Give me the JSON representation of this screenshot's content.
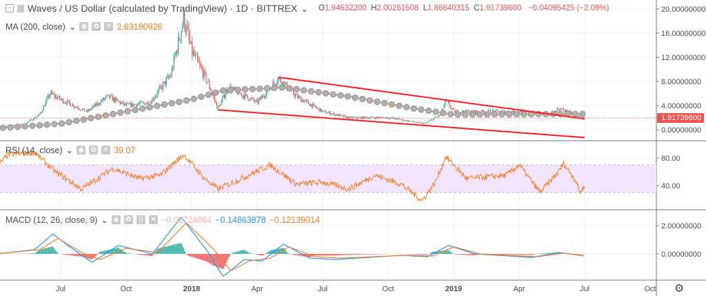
{
  "header": {
    "symbol": "Waves / US Dollar (calculated by TradingView) · 1D · BITTREX",
    "open_label": "O",
    "open": "1.94632200",
    "high_label": "H",
    "high": "2.00261508",
    "low_label": "L",
    "low": "1.86840315",
    "close_label": "C",
    "close": "1.91739600",
    "change": "−0.04095425 (−2.09%)"
  },
  "ma_legend": {
    "label": "MA (200, close)",
    "value": "2.63180926"
  },
  "rsi_legend": {
    "label": "RSI (14, close)",
    "value": "39.07"
  },
  "macd_legend": {
    "label": "MACD (12, 26, close, 9)",
    "hist": "−0.02724864",
    "macd": "−0.14863878",
    "signal": "−0.12139014"
  },
  "colors": {
    "up": "#26a69a",
    "down": "#ef5350",
    "ma": "#f57c1f",
    "ma_dots": "#b0b0b0",
    "trendline": "#ff1a1a",
    "rsi": "#f57c1f",
    "rsi_band": "#f3e5fd",
    "macd": "#2196f3",
    "signal": "#f57c1f"
  },
  "chart_data": [
    {
      "type": "candlestick",
      "title": "Waves / US Dollar (calculated by TradingView) · 1D · BITTREX",
      "x_ticks": [
        "Jul",
        "Oct",
        "2018",
        "Apr",
        "Jul",
        "Oct",
        "2019",
        "Apr",
        "Jul",
        "Oct"
      ],
      "y_ticks": [
        "20.00000000",
        "16.00000000",
        "12.00000000",
        "8.00000000",
        "4.00000000",
        "0.00000000"
      ],
      "ylim": [
        0,
        20
      ],
      "last_price": "1.91739600",
      "close_path": [
        [
          2017.25,
          0.5
        ],
        [
          2017.36,
          0.9
        ],
        [
          2017.42,
          2.5
        ],
        [
          2017.46,
          6.0
        ],
        [
          2017.5,
          5.0
        ],
        [
          2017.6,
          3.0
        ],
        [
          2017.68,
          5.5
        ],
        [
          2017.75,
          4.0
        ],
        [
          2017.84,
          4.5
        ],
        [
          2017.92,
          9.0
        ],
        [
          2017.97,
          18.5
        ],
        [
          2018.0,
          13.0
        ],
        [
          2018.06,
          8.0
        ],
        [
          2018.1,
          3.5
        ],
        [
          2018.14,
          7.0
        ],
        [
          2018.25,
          4.5
        ],
        [
          2018.33,
          8.5
        ],
        [
          2018.4,
          5.5
        ],
        [
          2018.5,
          3.0
        ],
        [
          2018.6,
          2.0
        ],
        [
          2018.75,
          2.0
        ],
        [
          2018.89,
          1.0
        ],
        [
          2018.95,
          2.5
        ],
        [
          2018.97,
          4.8
        ],
        [
          2019.0,
          3.0
        ],
        [
          2019.25,
          3.0
        ],
        [
          2019.37,
          2.5
        ],
        [
          2019.4,
          3.5
        ],
        [
          2019.5,
          1.92
        ]
      ],
      "ma_200": [
        [
          2017.25,
          0.2
        ],
        [
          2017.5,
          1.0
        ],
        [
          2017.75,
          3.0
        ],
        [
          2018.0,
          5.0
        ],
        [
          2018.12,
          6.5
        ],
        [
          2018.35,
          7.0
        ],
        [
          2018.6,
          5.5
        ],
        [
          2018.85,
          3.5
        ],
        [
          2019.0,
          2.5
        ],
        [
          2019.5,
          2.63
        ]
      ],
      "trendlines": [
        {
          "from": [
            2018.33,
            8.7
          ],
          "to": [
            2019.5,
            1.8
          ]
        },
        {
          "from": [
            2018.1,
            3.3
          ],
          "to": [
            2019.5,
            -1.3
          ]
        }
      ]
    },
    {
      "type": "line",
      "title": "RSI (14, close)",
      "y_ticks": [
        "80.00",
        "40.00"
      ],
      "bands": [
        30,
        70
      ],
      "values": [
        [
          2017.25,
          65
        ],
        [
          2017.3,
          85
        ],
        [
          2017.4,
          88
        ],
        [
          2017.48,
          60
        ],
        [
          2017.58,
          35
        ],
        [
          2017.7,
          65
        ],
        [
          2017.8,
          50
        ],
        [
          2017.88,
          55
        ],
        [
          2017.97,
          85
        ],
        [
          2018.05,
          50
        ],
        [
          2018.1,
          35
        ],
        [
          2018.2,
          52
        ],
        [
          2018.3,
          70
        ],
        [
          2018.4,
          42
        ],
        [
          2018.5,
          45
        ],
        [
          2018.6,
          35
        ],
        [
          2018.7,
          55
        ],
        [
          2018.8,
          42
        ],
        [
          2018.88,
          18
        ],
        [
          2018.93,
          45
        ],
        [
          2018.97,
          82
        ],
        [
          2019.05,
          50
        ],
        [
          2019.2,
          55
        ],
        [
          2019.25,
          70
        ],
        [
          2019.33,
          30
        ],
        [
          2019.4,
          60
        ],
        [
          2019.42,
          72
        ],
        [
          2019.47,
          45
        ],
        [
          2019.48,
          30
        ],
        [
          2019.5,
          39.07
        ]
      ]
    },
    {
      "type": "line",
      "title": "MACD (12, 26, close, 9)",
      "y_ticks": [
        "2.00000000",
        "0.00000000"
      ],
      "macd": [
        [
          2017.25,
          0
        ],
        [
          2017.4,
          0.3
        ],
        [
          2017.47,
          1.4
        ],
        [
          2017.55,
          0.3
        ],
        [
          2017.62,
          -0.6
        ],
        [
          2017.72,
          0.6
        ],
        [
          2017.85,
          0.0
        ],
        [
          2017.96,
          2.6
        ],
        [
          2018.06,
          0.2
        ],
        [
          2018.12,
          -1.6
        ],
        [
          2018.2,
          -0.4
        ],
        [
          2018.27,
          -0.5
        ],
        [
          2018.35,
          0.7
        ],
        [
          2018.45,
          -0.3
        ],
        [
          2018.55,
          -0.4
        ],
        [
          2018.8,
          -0.1
        ],
        [
          2018.9,
          -0.2
        ],
        [
          2018.98,
          0.6
        ],
        [
          2019.08,
          0.0
        ],
        [
          2019.3,
          -0.25
        ],
        [
          2019.4,
          0.1
        ],
        [
          2019.5,
          -0.15
        ]
      ],
      "signal": [
        [
          2017.25,
          0
        ],
        [
          2017.42,
          0.3
        ],
        [
          2017.49,
          1.1
        ],
        [
          2017.58,
          0.1
        ],
        [
          2017.65,
          -0.4
        ],
        [
          2017.75,
          0.4
        ],
        [
          2017.87,
          0.1
        ],
        [
          2017.98,
          2.2
        ],
        [
          2018.08,
          0.4
        ],
        [
          2018.15,
          -1.2
        ],
        [
          2018.22,
          -0.5
        ],
        [
          2018.3,
          -0.3
        ],
        [
          2018.37,
          0.5
        ],
        [
          2018.47,
          -0.2
        ],
        [
          2018.57,
          -0.3
        ],
        [
          2018.82,
          -0.1
        ],
        [
          2018.92,
          -0.15
        ],
        [
          2019.0,
          0.5
        ],
        [
          2019.1,
          0.0
        ],
        [
          2019.32,
          -0.2
        ],
        [
          2019.42,
          0.05
        ],
        [
          2019.5,
          -0.12
        ]
      ]
    }
  ]
}
